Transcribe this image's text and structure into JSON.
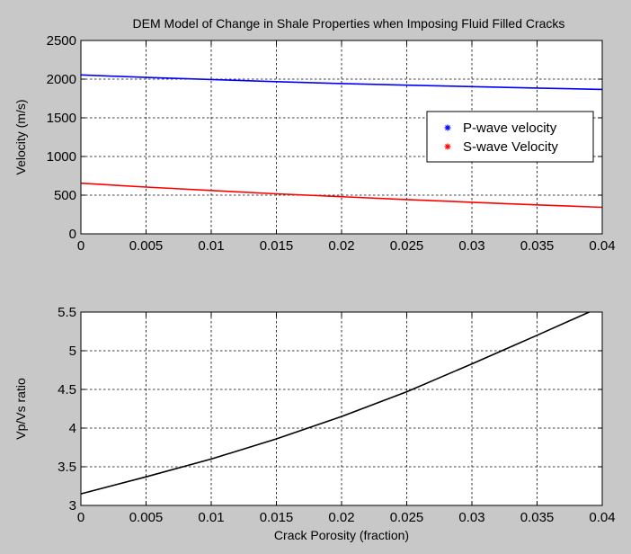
{
  "figure": {
    "background": "#c8c8c8",
    "axes_background": "#ffffff"
  },
  "chart_data": [
    {
      "type": "line",
      "title": "DEM Model of Change in Shale Properties when Imposing Fluid Filled Cracks",
      "xlabel": "",
      "ylabel": "Velocity (m/s)",
      "xlim": [
        0,
        0.04
      ],
      "ylim": [
        0,
        2500
      ],
      "xticks": [
        "0",
        "0.005",
        "0.01",
        "0.015",
        "0.02",
        "0.025",
        "0.03",
        "0.035",
        "0.04"
      ],
      "yticks": [
        "0",
        "500",
        "1000",
        "1500",
        "2000",
        "2500"
      ],
      "grid": true,
      "legend_position": "right",
      "x": [
        0,
        0.005,
        0.01,
        0.015,
        0.02,
        0.025,
        0.03,
        0.035,
        0.04
      ],
      "series": [
        {
          "name": "P-wave velocity",
          "color": "#0000ff",
          "marker": "*",
          "values": [
            2055,
            2022,
            1995,
            1968,
            1943,
            1922,
            1903,
            1885,
            1868
          ]
        },
        {
          "name": "S-wave Velocity",
          "color": "#ff0000",
          "marker": "*",
          "values": [
            655,
            605,
            560,
            518,
            480,
            443,
            408,
            375,
            343
          ]
        }
      ]
    },
    {
      "type": "line",
      "title": "",
      "xlabel": "Crack Porosity (fraction)",
      "ylabel": "Vp/Vs ratio",
      "xlim": [
        0,
        0.04
      ],
      "ylim": [
        3,
        5.5
      ],
      "xticks": [
        "0",
        "0.005",
        "0.01",
        "0.015",
        "0.02",
        "0.025",
        "0.03",
        "0.035",
        "0.04"
      ],
      "yticks": [
        "3",
        "3.5",
        "4",
        "4.5",
        "5",
        "5.5"
      ],
      "grid": true,
      "x": [
        0,
        0.005,
        0.01,
        0.015,
        0.02,
        0.025,
        0.03,
        0.035,
        0.039
      ],
      "series": [
        {
          "color": "#000000",
          "values": [
            3.15,
            3.37,
            3.6,
            3.86,
            4.15,
            4.47,
            4.83,
            5.2,
            5.5
          ]
        }
      ]
    }
  ]
}
